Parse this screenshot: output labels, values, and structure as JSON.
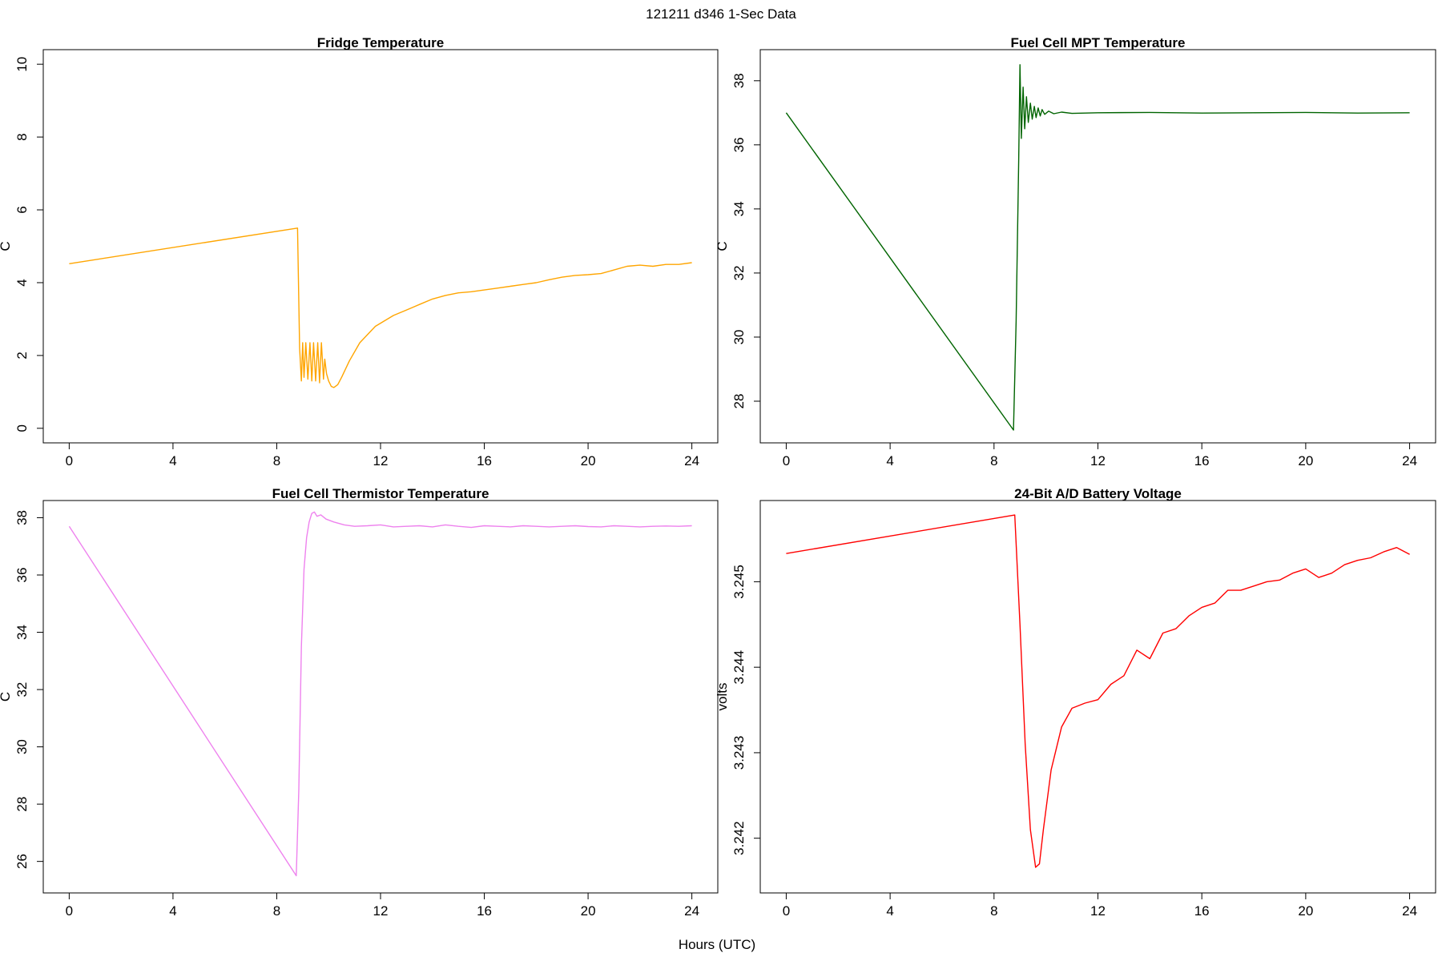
{
  "figure": {
    "title": "121211   d346   1-Sec Data",
    "xlabel": "Hours (UTC)"
  },
  "chart_data": [
    {
      "type": "line",
      "title": "Fridge Temperature",
      "ylabel": "C",
      "color": "#FFA500",
      "xlim": [
        -1,
        25
      ],
      "ylim": [
        -0.4,
        10.4
      ],
      "xticks": [
        "0",
        "4",
        "8",
        "12",
        "16",
        "20",
        "24"
      ],
      "yticks": [
        "0",
        "2",
        "4",
        "6",
        "8",
        "10"
      ],
      "series": [
        {
          "name": "Fridge Temperature",
          "x": [
            0,
            8.8,
            8.88,
            8.95,
            9.0,
            9.05,
            9.12,
            9.2,
            9.28,
            9.35,
            9.42,
            9.5,
            9.58,
            9.65,
            9.72,
            9.8,
            9.85,
            9.92,
            10.0,
            10.1,
            10.2,
            10.35,
            10.5,
            10.8,
            11.2,
            11.8,
            12.5,
            13.0,
            13.5,
            14.0,
            14.5,
            15.0,
            15.5,
            16.0,
            16.5,
            17.0,
            17.5,
            18.0,
            18.5,
            19.0,
            19.5,
            20.0,
            20.5,
            21.0,
            21.5,
            22.0,
            22.5,
            23.0,
            23.5,
            24.0
          ],
          "y": [
            4.52,
            5.5,
            2.2,
            1.3,
            2.35,
            1.4,
            2.35,
            1.35,
            2.35,
            1.3,
            2.35,
            1.3,
            2.35,
            1.25,
            2.35,
            1.35,
            1.9,
            1.5,
            1.3,
            1.15,
            1.12,
            1.2,
            1.4,
            1.85,
            2.35,
            2.8,
            3.1,
            3.25,
            3.4,
            3.55,
            3.65,
            3.72,
            3.75,
            3.8,
            3.85,
            3.9,
            3.95,
            4.0,
            4.08,
            4.15,
            4.2,
            4.22,
            4.25,
            4.35,
            4.45,
            4.48,
            4.45,
            4.5,
            4.5,
            4.55
          ]
        }
      ]
    },
    {
      "type": "line",
      "title": "Fuel Cell MPT Temperature",
      "ylabel": "C",
      "color": "#006400",
      "xlim": [
        -1,
        25
      ],
      "ylim": [
        26.7,
        38.97
      ],
      "xticks": [
        "0",
        "4",
        "8",
        "12",
        "16",
        "20",
        "24"
      ],
      "yticks": [
        "28",
        "30",
        "32",
        "34",
        "36",
        "38"
      ],
      "series": [
        {
          "name": "Fuel Cell MPT Temperature",
          "x": [
            0,
            8.75,
            8.85,
            8.95,
            9.0,
            9.05,
            9.12,
            9.18,
            9.25,
            9.32,
            9.4,
            9.47,
            9.55,
            9.62,
            9.7,
            9.78,
            9.85,
            9.95,
            10.1,
            10.3,
            10.6,
            11.0,
            12.0,
            14.0,
            16.0,
            18.0,
            20.0,
            22.0,
            24.0
          ],
          "y": [
            37.0,
            27.1,
            30.5,
            35.5,
            38.5,
            36.2,
            37.8,
            36.5,
            37.5,
            36.7,
            37.3,
            36.8,
            37.2,
            36.85,
            37.15,
            36.9,
            37.1,
            36.95,
            37.05,
            36.97,
            37.02,
            36.98,
            37.0,
            37.01,
            36.99,
            37.0,
            37.01,
            36.99,
            37.0
          ]
        }
      ]
    },
    {
      "type": "line",
      "title": "Fuel Cell Thermistor Temperature",
      "ylabel": "C",
      "color": "#EE82EE",
      "xlim": [
        -1,
        25
      ],
      "ylim": [
        24.9,
        38.6
      ],
      "xticks": [
        "0",
        "4",
        "8",
        "12",
        "16",
        "20",
        "24"
      ],
      "yticks": [
        "26",
        "28",
        "30",
        "32",
        "34",
        "36",
        "38"
      ],
      "series": [
        {
          "name": "Fuel Cell Thermistor Temperature",
          "x": [
            0,
            8.75,
            8.85,
            8.95,
            9.05,
            9.15,
            9.25,
            9.35,
            9.45,
            9.55,
            9.7,
            9.9,
            10.2,
            10.6,
            11.0,
            11.5,
            12.0,
            12.5,
            13.0,
            13.5,
            14.0,
            14.5,
            15.0,
            15.5,
            16.0,
            16.5,
            17.0,
            17.5,
            18.0,
            18.5,
            19.0,
            19.5,
            20.0,
            20.5,
            21.0,
            21.5,
            22.0,
            22.5,
            23.0,
            23.5,
            24.0
          ],
          "y": [
            37.7,
            25.5,
            28.5,
            33.5,
            36.2,
            37.3,
            37.85,
            38.15,
            38.2,
            38.05,
            38.1,
            37.95,
            37.85,
            37.75,
            37.7,
            37.72,
            37.75,
            37.68,
            37.7,
            37.72,
            37.68,
            37.75,
            37.7,
            37.66,
            37.72,
            37.7,
            37.68,
            37.72,
            37.7,
            37.68,
            37.7,
            37.72,
            37.69,
            37.68,
            37.72,
            37.7,
            37.68,
            37.7,
            37.71,
            37.7,
            37.72
          ]
        }
      ]
    },
    {
      "type": "line",
      "title": "24-Bit A/D Battery Voltage",
      "ylabel": "volts",
      "color": "#FF0000",
      "xlim": [
        -1,
        25
      ],
      "ylim": [
        3.24136,
        3.24595
      ],
      "xticks": [
        "0",
        "4",
        "8",
        "12",
        "16",
        "20",
        "24"
      ],
      "yticks": [
        "3.242",
        "3.243",
        "3.244",
        "3.245"
      ],
      "series": [
        {
          "name": "24-Bit A/D Battery Voltage",
          "x": [
            0,
            8.8,
            9.0,
            9.2,
            9.4,
            9.6,
            9.75,
            9.9,
            10.2,
            10.6,
            11.0,
            11.5,
            12.0,
            12.5,
            13.0,
            13.5,
            14.0,
            14.5,
            15.0,
            15.5,
            16.0,
            16.5,
            17.0,
            17.5,
            18.0,
            18.5,
            19.0,
            19.5,
            20.0,
            20.5,
            21.0,
            21.5,
            22.0,
            22.5,
            23.0,
            23.5,
            24.0
          ],
          "y": [
            3.24533,
            3.24578,
            3.2445,
            3.2431,
            3.2421,
            3.24166,
            3.2417,
            3.2421,
            3.2428,
            3.2433,
            3.24352,
            3.24358,
            3.24362,
            3.2438,
            3.2439,
            3.2442,
            3.2441,
            3.2444,
            3.24445,
            3.2446,
            3.2447,
            3.24475,
            3.2449,
            3.2449,
            3.24495,
            3.245,
            3.24502,
            3.2451,
            3.24515,
            3.24505,
            3.2451,
            3.2452,
            3.24525,
            3.24528,
            3.24535,
            3.2454,
            3.24532
          ]
        }
      ]
    }
  ]
}
